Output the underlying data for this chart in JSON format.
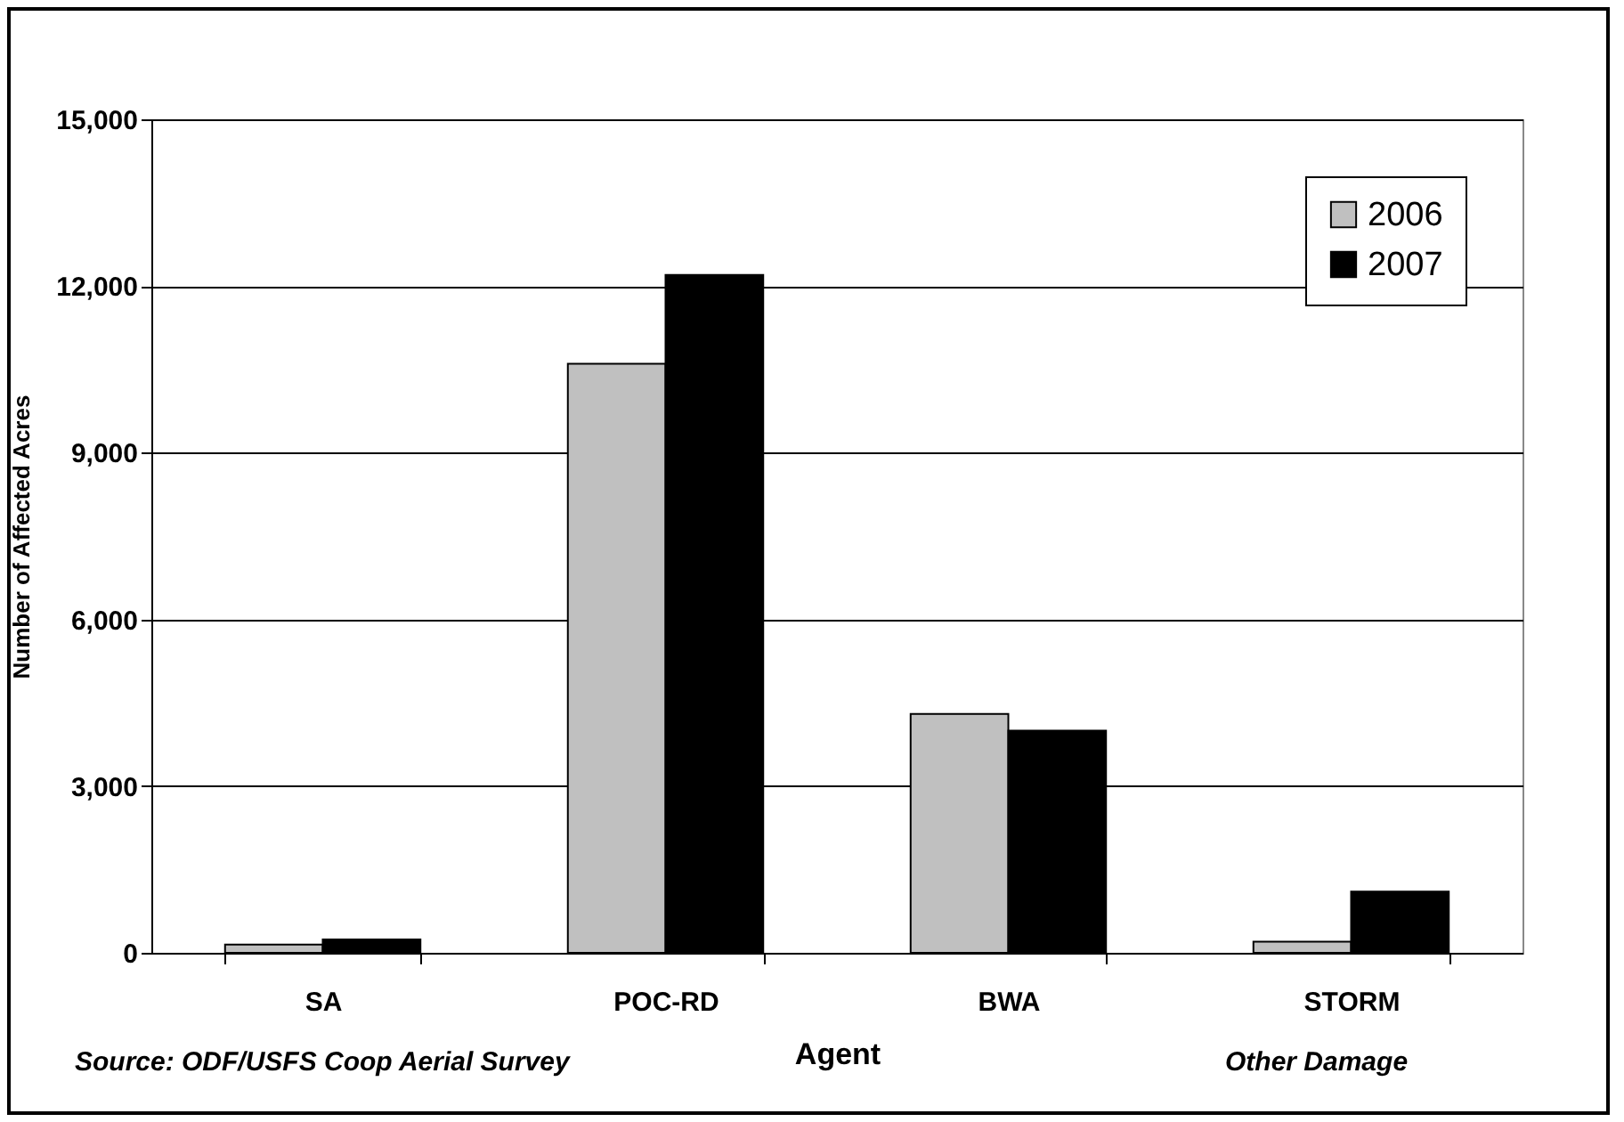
{
  "chart_data": {
    "type": "bar",
    "categories": [
      "SA",
      "POC-RD",
      "BWA",
      "STORM"
    ],
    "series": [
      {
        "name": "2006",
        "color": "#c0c0c0",
        "values": [
          150,
          10600,
          4300,
          200
        ]
      },
      {
        "name": "2007",
        "color": "#000000",
        "values": [
          240,
          12200,
          4000,
          1100
        ]
      }
    ],
    "xlabel": "Agent",
    "ylabel": "Number of Affected Acres",
    "ylim": [
      0,
      15000
    ],
    "yticks": [
      0,
      {
        "value": 3000,
        "label": "3,000"
      },
      {
        "value": 6000,
        "label": "6,000"
      },
      {
        "value": 9000,
        "label": "9,000"
      },
      {
        "value": 12000,
        "label": "12,000"
      },
      {
        "value": 15000,
        "label": "15,000"
      }
    ],
    "grid": "y",
    "legend": "top right",
    "annotations": [
      "Source: ODF/USFS Coop Aerial Survey",
      "Other Damage"
    ]
  }
}
